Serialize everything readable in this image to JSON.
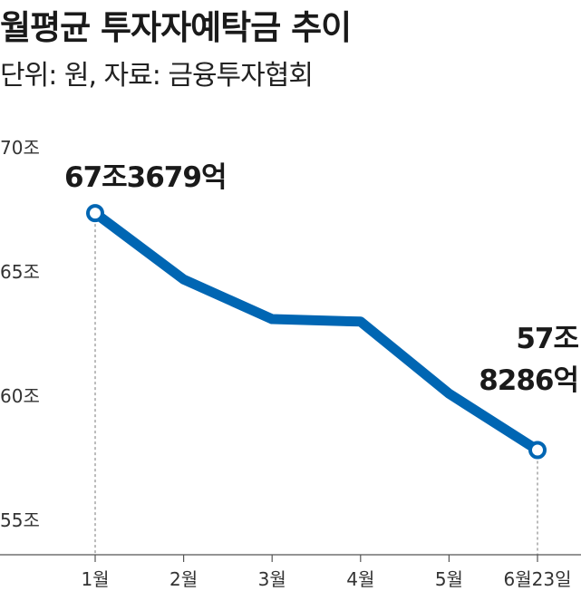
{
  "title": "월평균 투자자예탁금 추이",
  "subtitle": "단위: 원, 자료: 금융투자협회",
  "chart_data": {
    "type": "line",
    "title": "월평균 투자자예탁금 추이",
    "subtitle": "단위: 원, 자료: 금융투자협회",
    "categories": [
      "1월",
      "2월",
      "3월",
      "4월",
      "5월",
      "6월23일"
    ],
    "y_tick_labels": [
      "70조",
      "65조",
      "60조",
      "55조"
    ],
    "y_ticks": [
      70,
      65,
      60,
      55
    ],
    "ylim": [
      53.5,
      72
    ],
    "series": [
      {
        "values": [
          67.3679,
          64.7,
          63.1,
          63.0,
          60.1,
          57.8286
        ],
        "color": "#0066b3"
      }
    ],
    "annotations": [
      {
        "index": 0,
        "lines": [
          "67조3679억"
        ]
      },
      {
        "index": 5,
        "lines": [
          "57조",
          "8286억"
        ]
      }
    ],
    "grid": false,
    "line_color": "#0066b3"
  }
}
